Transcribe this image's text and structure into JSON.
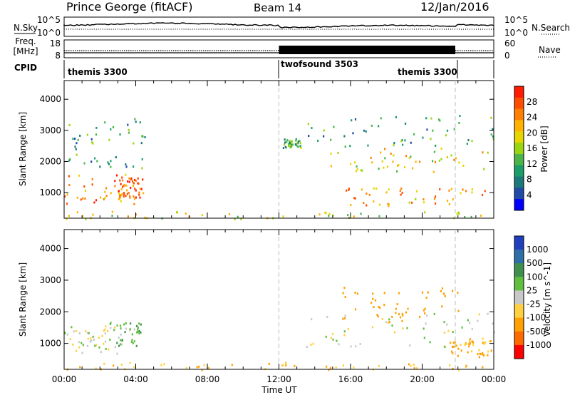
{
  "header": {
    "title": "Prince George (fitACF)",
    "beam": "Beam 14",
    "date": "12/Jan/2016"
  },
  "noise_panel": {
    "left_label": "N.Sky",
    "left_ticks": [
      "10^5",
      "10^0"
    ],
    "right_label": "N.Search",
    "right_ticks": [
      "10^5",
      "10^0"
    ]
  },
  "freq_panel": {
    "left_label_1": "Freq.",
    "left_label_2": "[MHz]",
    "left_ticks": [
      "18",
      "8"
    ],
    "right_label": "Nave",
    "right_ticks": [
      "60",
      "0"
    ]
  },
  "cpid_panel": {
    "label": "CPID",
    "segments": [
      {
        "label": "themis 3300",
        "start": "00:00",
        "end": "12:00"
      },
      {
        "label": "twofsound 3503",
        "start": "12:00",
        "end": "21:50"
      },
      {
        "label": "themis 3300",
        "start": "21:50",
        "end": "24:00"
      }
    ]
  },
  "power_colorbar": {
    "label": "Power [dB]",
    "ticks": [
      "28",
      "24",
      "20",
      "16",
      "12",
      "8",
      "4"
    ],
    "colors": [
      "#ff1a00",
      "#ff4d00",
      "#ff8000",
      "#ffb300",
      "#e6d600",
      "#9ad60f",
      "#4bb54a",
      "#1b9e6a",
      "#1a7a7a",
      "#1f4aa8",
      "#0000ff"
    ]
  },
  "velocity_colorbar": {
    "label": "Velocity [m s^-1]",
    "ticks": [
      "1000",
      "500",
      "100",
      "25",
      "-25",
      "-100",
      "-500",
      "-1000"
    ],
    "colors": [
      "#1f3fbf",
      "#2f6fa8",
      "#3f8f4f",
      "#5fc03f",
      "#c8c8c8",
      "#ffd040",
      "#ffa000",
      "#ff6a00",
      "#ff0000"
    ]
  },
  "chart_data": {
    "type": "heatmap",
    "xlabel": "Time UT",
    "ylabel": "Slant Range [km]",
    "x_ticks": [
      "00:00",
      "04:00",
      "08:00",
      "12:00",
      "16:00",
      "20:00",
      "00:00"
    ],
    "y_ticks": [
      1000,
      2000,
      3000,
      4000
    ],
    "xlim": [
      0,
      24
    ],
    "ylim": [
      180,
      4600
    ],
    "markers_hours": [
      12.0,
      21.85
    ],
    "power_scatter_regions": [
      {
        "t": [
          0.0,
          3.9
        ],
        "r": [
          600,
          1700
        ],
        "power_db": 26
      },
      {
        "t": [
          3.0,
          4.4
        ],
        "r": [
          800,
          1500
        ],
        "power_db": 28
      },
      {
        "t": [
          0.2,
          4.5
        ],
        "r": [
          1800,
          3400
        ],
        "power_db": 10
      },
      {
        "t": [
          0.0,
          24.0
        ],
        "r": [
          180,
          420
        ],
        "power_db": 18
      },
      {
        "t": [
          14.8,
          24.0
        ],
        "r": [
          1700,
          2500
        ],
        "power_db": 20
      },
      {
        "t": [
          15.5,
          24.0
        ],
        "r": [
          600,
          1200
        ],
        "power_db": 24
      },
      {
        "t": [
          12.2,
          13.2
        ],
        "r": [
          2450,
          2750
        ],
        "power_db": 12
      },
      {
        "t": [
          13.5,
          24.0
        ],
        "r": [
          2500,
          3500
        ],
        "power_db": 10
      }
    ],
    "velocity_scatter_regions": [
      {
        "t": [
          0.0,
          3.0
        ],
        "r": [
          700,
          1600
        ],
        "velocity_ms": -15
      },
      {
        "t": [
          2.5,
          4.3
        ],
        "r": [
          900,
          1700
        ],
        "velocity_ms": 60
      },
      {
        "t": [
          0.0,
          24.0
        ],
        "r": [
          180,
          420
        ],
        "velocity_ms": -120
      },
      {
        "t": [
          13.5,
          24.0
        ],
        "r": [
          900,
          2000
        ],
        "velocity_ms": 0
      },
      {
        "t": [
          15.5,
          22.0
        ],
        "r": [
          1700,
          2800
        ],
        "velocity_ms": -200
      },
      {
        "t": [
          21.5,
          24.0
        ],
        "r": [
          600,
          1200
        ],
        "velocity_ms": -150
      }
    ]
  }
}
